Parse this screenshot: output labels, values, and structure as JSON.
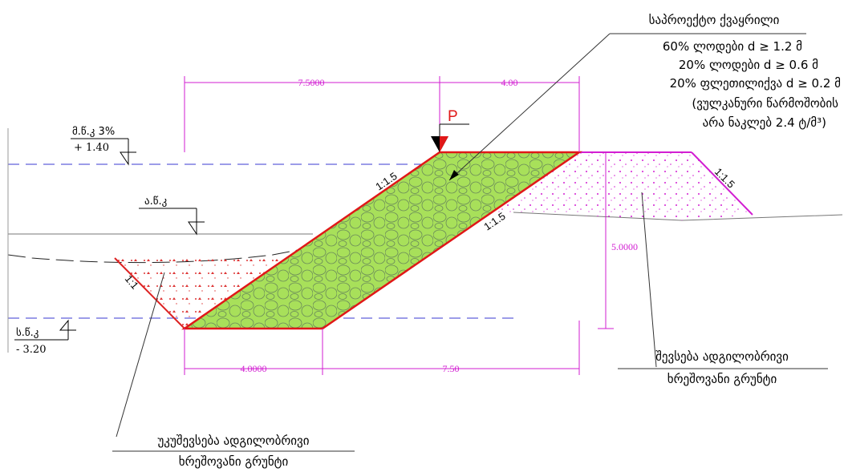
{
  "material": {
    "title": "საპროექტო ქვაყრილი",
    "lines": [
      "60% ლოდები d ≥ 1.2 მ",
      "20% ლოდები d ≥ 0.6 მ",
      "20% ფლეთილიქვა d ≥ 0.2 მ",
      "(ვულკანური წარმოშობის",
      "არა ნაკლებ 2.4 ტ/მ³)"
    ]
  },
  "load": "P",
  "dimensions": {
    "top_left": "7.5000",
    "top_right": "4.00",
    "height": "5.0000",
    "bottom_left": "4.0000",
    "bottom_right": "7.50"
  },
  "slopes": {
    "left_face": "1:1.5",
    "right_face": "1:1.5",
    "fill": "1:1.5",
    "backfill": "1:1"
  },
  "levels": {
    "high": {
      "name": "მ.წ.კ 3%",
      "value": "+ 1.40"
    },
    "mean": {
      "name": "ა.წ.კ"
    },
    "low": {
      "name": "ს.წ.კ",
      "value": "- 3.20"
    }
  },
  "notes": {
    "fill": [
      "შევსება ადგილობრივი",
      "ხრეშოვანი გრუნტი"
    ],
    "backfill": [
      "უკუშევსება ადგილობრივი",
      "ხრეშოვანი გრუნტი"
    ]
  }
}
